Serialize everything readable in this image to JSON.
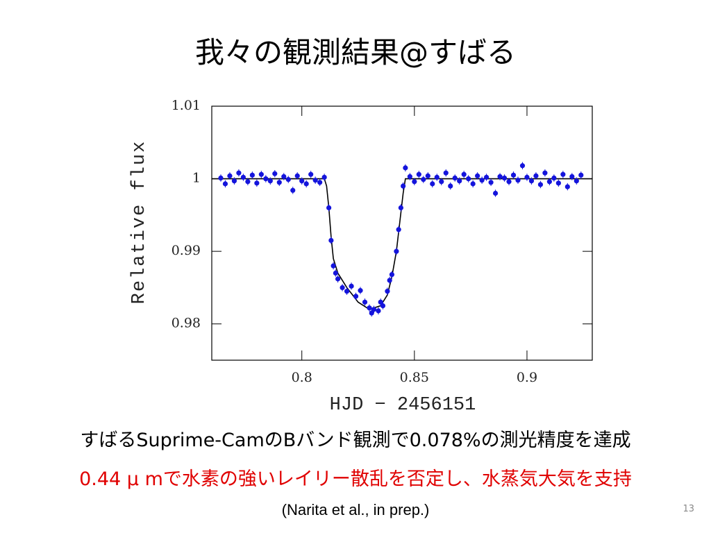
{
  "slide": {
    "title": "我々の観測結果@すばる",
    "lines": [
      "すばるSuprime-CamのBバンド観測で0.078%の測光精度を達成",
      "0.44 μ mで水素の強いレイリー散乱を否定し、水蒸気大気を支持"
    ],
    "citation": "(Narita et al., in prep.)",
    "page_number": "13"
  },
  "chart_data": {
    "type": "scatter",
    "xlabel": "HJD − 2456151",
    "ylabel": "Relative flux",
    "xlim": [
      0.76,
      0.929
    ],
    "ylim": [
      0.975,
      1.01
    ],
    "xticks": [
      0.8,
      0.85,
      0.9
    ],
    "yticks": [
      0.98,
      0.99,
      1,
      1.01
    ],
    "series": [
      {
        "color": "#1414dc",
        "error": 0.0005,
        "x": [
          0.764,
          0.766,
          0.768,
          0.77,
          0.772,
          0.774,
          0.776,
          0.778,
          0.78,
          0.782,
          0.784,
          0.786,
          0.788,
          0.79,
          0.792,
          0.794,
          0.796,
          0.798,
          0.8,
          0.802,
          0.804,
          0.806,
          0.808,
          0.81,
          0.812,
          0.813,
          0.814,
          0.815,
          0.816,
          0.818,
          0.82,
          0.822,
          0.824,
          0.826,
          0.828,
          0.83,
          0.831,
          0.832,
          0.834,
          0.835,
          0.836,
          0.838,
          0.839,
          0.84,
          0.842,
          0.843,
          0.844,
          0.845,
          0.846,
          0.848,
          0.85,
          0.852,
          0.854,
          0.856,
          0.858,
          0.86,
          0.862,
          0.864,
          0.866,
          0.868,
          0.87,
          0.872,
          0.874,
          0.876,
          0.878,
          0.88,
          0.882,
          0.884,
          0.886,
          0.888,
          0.89,
          0.892,
          0.894,
          0.896,
          0.898,
          0.9,
          0.902,
          0.904,
          0.906,
          0.908,
          0.91,
          0.912,
          0.914,
          0.916,
          0.918,
          0.92,
          0.922,
          0.924
        ],
        "values": [
          1.0001,
          0.9993,
          1.0004,
          0.9997,
          1.0008,
          1.0002,
          0.9996,
          1.0005,
          0.9994,
          1.0006,
          1.0,
          0.9997,
          1.0007,
          0.9995,
          1.0003,
          0.9999,
          0.9984,
          1.0004,
          0.9997,
          0.9993,
          1.0006,
          0.9998,
          0.9995,
          1.0002,
          0.996,
          0.9915,
          0.988,
          0.987,
          0.9862,
          0.985,
          0.9845,
          0.9852,
          0.9838,
          0.9846,
          0.983,
          0.9822,
          0.9815,
          0.982,
          0.9818,
          0.983,
          0.9825,
          0.9845,
          0.986,
          0.9868,
          0.99,
          0.993,
          0.996,
          0.999,
          1.0015,
          1.0003,
          0.9996,
          1.0006,
          0.9999,
          1.0004,
          0.9993,
          1.0002,
          0.9996,
          1.0008,
          0.999,
          1.0001,
          0.9997,
          1.0006,
          1.0,
          0.9993,
          1.0004,
          0.9998,
          1.0002,
          0.9995,
          0.998,
          1.0003,
          1.0001,
          0.9996,
          1.0005,
          0.9998,
          1.0018,
          1.0002,
          0.9997,
          1.0004,
          0.9992,
          1.0008,
          0.9996,
          1.0001,
          0.9994,
          1.0006,
          0.9989,
          1.0003,
          0.9997,
          1.0005
        ]
      }
    ],
    "model": {
      "color": "#000000",
      "x": [
        0.76,
        0.81,
        0.811,
        0.812,
        0.813,
        0.814,
        0.816,
        0.82,
        0.825,
        0.83,
        0.835,
        0.838,
        0.84,
        0.842,
        0.8435,
        0.845,
        0.846,
        0.929
      ],
      "values": [
        1,
        1,
        0.999,
        0.996,
        0.992,
        0.989,
        0.987,
        0.985,
        0.983,
        0.982,
        0.9825,
        0.984,
        0.9865,
        0.99,
        0.994,
        0.998,
        1,
        1
      ]
    }
  }
}
